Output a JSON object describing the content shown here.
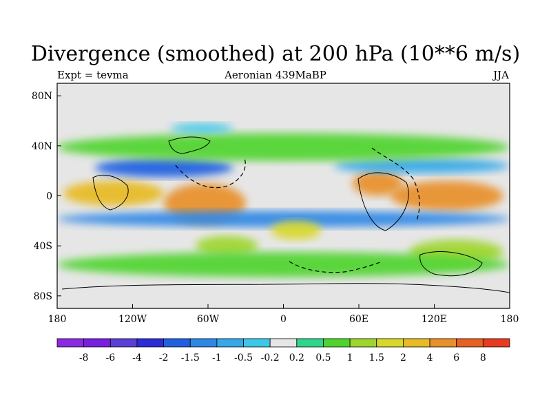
{
  "title": "Divergence (smoothed) at 200 hPa (10**6 m/s)",
  "subtitle": {
    "left": "Expt = tevma",
    "center": "Aeronian 439MaBP",
    "right": "JJA"
  },
  "map": {
    "projection": "cylindrical-equidistant",
    "lon_range": [
      -180,
      180
    ],
    "lat_range": [
      -90,
      90
    ],
    "background_color": "#e6e6e6",
    "x_ticks": [
      {
        "lon": -180,
        "label": "180"
      },
      {
        "lon": -120,
        "label": "120W"
      },
      {
        "lon": -60,
        "label": "60W"
      },
      {
        "lon": 0,
        "label": "0"
      },
      {
        "lon": 60,
        "label": "60E"
      },
      {
        "lon": 120,
        "label": "120E"
      },
      {
        "lon": 180,
        "label": "180"
      }
    ],
    "y_ticks": [
      {
        "lat": 80,
        "label": "80N"
      },
      {
        "lat": 40,
        "label": "40N"
      },
      {
        "lat": 0,
        "label": "0"
      },
      {
        "lat": -40,
        "label": "40S"
      },
      {
        "lat": -80,
        "label": "80S"
      }
    ],
    "fields": [
      {
        "name": "strong-divergence-east",
        "lon_min": 85,
        "lon_max": 175,
        "lat_min": -12,
        "lat_max": 12,
        "level": 4
      },
      {
        "name": "divergence-west-atlantic",
        "lon_min": -95,
        "lon_max": -30,
        "lat_min": -22,
        "lat_max": 10,
        "level": 4
      },
      {
        "name": "divergence-pacific-west",
        "lon_min": -175,
        "lon_max": -95,
        "lat_min": -8,
        "lat_max": 12,
        "level": 2
      },
      {
        "name": "divergence-africa",
        "lon_min": 55,
        "lon_max": 95,
        "lat_min": 0,
        "lat_max": 20,
        "level": 4
      },
      {
        "name": "convergence-band-north",
        "lon_min": -150,
        "lon_max": -40,
        "lat_min": 15,
        "lat_max": 30,
        "level": -2
      },
      {
        "name": "convergence-band-south",
        "lon_min": -180,
        "lon_max": 180,
        "lat_min": -25,
        "lat_max": -12,
        "level": -1.5
      },
      {
        "name": "convergence-north-east",
        "lon_min": 40,
        "lon_max": 180,
        "lat_min": 18,
        "lat_max": 30,
        "level": -1
      },
      {
        "name": "divergence-south-pacific",
        "lon_min": -70,
        "lon_max": -20,
        "lat_min": -48,
        "lat_max": -32,
        "level": 1
      },
      {
        "name": "divergence-south-indian",
        "lon_min": 100,
        "lon_max": 175,
        "lat_min": -55,
        "lat_max": -35,
        "level": 1
      },
      {
        "name": "divergence-south-central",
        "lon_min": -10,
        "lon_max": 30,
        "lat_min": -35,
        "lat_max": -20,
        "level": 1.5
      },
      {
        "name": "weak-north-band",
        "lon_min": -180,
        "lon_max": 180,
        "lat_min": 28,
        "lat_max": 50,
        "level": 0.5
      },
      {
        "name": "weak-south-band",
        "lon_min": -180,
        "lon_max": 180,
        "lat_min": -65,
        "lat_max": -45,
        "level": 0.5
      },
      {
        "name": "north-pole-patch",
        "lon_min": -90,
        "lon_max": -40,
        "lat_min": 50,
        "lat_max": 58,
        "level": -0.5
      }
    ]
  },
  "colorbar": {
    "colors": [
      "#8a2be2",
      "#7a1fe0",
      "#5a3fd6",
      "#2b2bd8",
      "#1f5fe0",
      "#2d87e6",
      "#35a8e8",
      "#3cc8e8",
      "#e6e6e6",
      "#2ed68c",
      "#4fd42e",
      "#9ed62e",
      "#d8d82a",
      "#e8ba24",
      "#e8902a",
      "#e8601f",
      "#e83a1f"
    ],
    "labels": [
      "-8",
      "-6",
      "-4",
      "-2",
      "-1.5",
      "-1",
      "-0.5",
      "-0.2",
      "0.2",
      "0.5",
      "1",
      "1.5",
      "2",
      "4",
      "6",
      "8"
    ]
  }
}
